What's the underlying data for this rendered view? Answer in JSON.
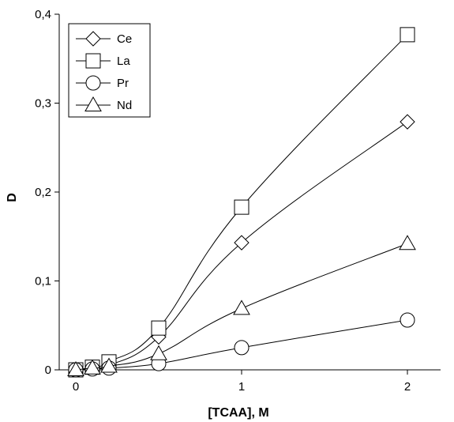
{
  "chart_data": {
    "type": "line",
    "xlabel": "[TCAA], M",
    "ylabel": "D",
    "xlim": [
      -0.1,
      2.2
    ],
    "ylim": [
      0,
      0.4
    ],
    "xticks": [
      0,
      1,
      2
    ],
    "xtick_labels": [
      "0",
      "1",
      "2"
    ],
    "yticks": [
      0,
      0.1,
      0.2,
      0.3,
      0.4
    ],
    "ytick_labels": [
      "0",
      "0,1",
      "0,2",
      "0,3",
      "0,4"
    ],
    "grid": false,
    "legend_position": "top-left",
    "x": [
      0,
      0.1,
      0.2,
      0.5,
      1,
      2
    ],
    "series": [
      {
        "name": "Ce",
        "marker": "diamond",
        "values": [
          0.0,
          0.002,
          0.005,
          0.037,
          0.143,
          0.279
        ]
      },
      {
        "name": "La",
        "marker": "square",
        "values": [
          0.0,
          0.003,
          0.009,
          0.047,
          0.183,
          0.377
        ]
      },
      {
        "name": "Pr",
        "marker": "circle",
        "values": [
          0.0,
          0.001,
          0.002,
          0.007,
          0.025,
          0.056
        ]
      },
      {
        "name": "Nd",
        "marker": "triangle",
        "values": [
          0.0,
          0.002,
          0.004,
          0.018,
          0.069,
          0.142
        ]
      }
    ],
    "colors": {
      "line": "#000000",
      "marker_fill": "#ffffff"
    }
  }
}
